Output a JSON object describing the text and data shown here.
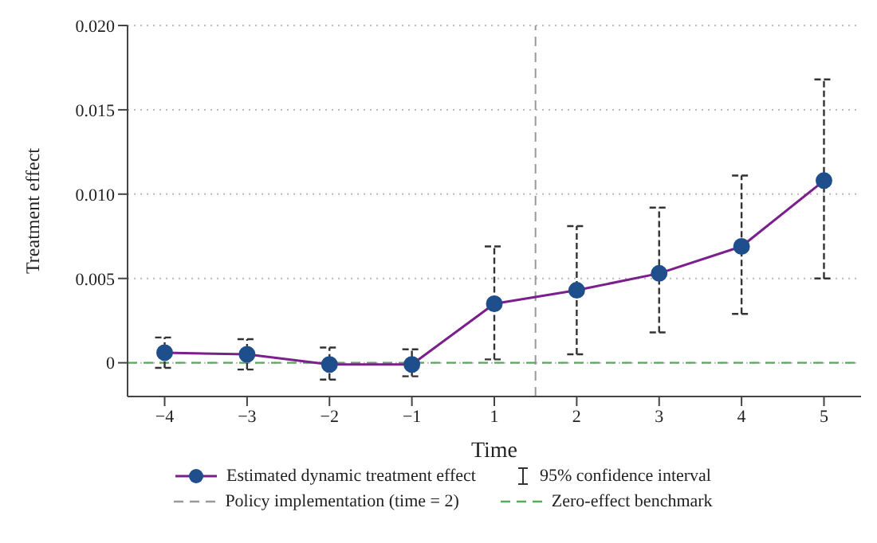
{
  "chart_data": {
    "type": "line",
    "xlabel": "Time",
    "ylabel": "Treatment effect",
    "categories": [
      "−4",
      "−3",
      "−2",
      "−1",
      "1",
      "2",
      "3",
      "4",
      "5"
    ],
    "series": [
      {
        "name": "Estimated dynamic treatment effect",
        "color": "#1f4e8c",
        "values": [
          0.0006,
          0.0005,
          -0.0001,
          -0.0001,
          0.0035,
          0.0043,
          0.0053,
          0.0069,
          0.0108
        ],
        "errors": [
          [
            -0.0003,
            0.0015
          ],
          [
            -0.0004,
            0.0014
          ],
          [
            -0.001,
            0.0009
          ],
          [
            -0.0008,
            0.0008
          ],
          [
            0.0002,
            0.0069
          ],
          [
            0.0005,
            0.0081
          ],
          [
            0.0018,
            0.0092
          ],
          [
            0.0029,
            0.0111
          ],
          [
            0.005,
            0.0168
          ]
        ]
      }
    ],
    "annotations": [
      "95% confidence interval"
    ],
    "ref_lines": [
      {
        "axis": "x",
        "value": "2",
        "label": "Policy implementation (time = 2)",
        "color": "#999999",
        "line_style": "dashed"
      },
      {
        "axis": "y",
        "value": 0,
        "label": "Zero-effect benchmark",
        "color": "#5aa85a",
        "line_style": "dashed"
      }
    ],
    "ylim": [
      -0.002,
      0.02
    ],
    "yticks": [
      {
        "value": 0,
        "label": "0"
      },
      {
        "value": 0.005,
        "label": "0.005"
      },
      {
        "value": 0.01,
        "label": "0.010"
      },
      {
        "value": 0.015,
        "label": "0.015"
      },
      {
        "value": 0.02,
        "label": "0.020"
      }
    ],
    "grid": "y",
    "marker": "circle",
    "line_style": "solid",
    "legend": "bottom"
  }
}
